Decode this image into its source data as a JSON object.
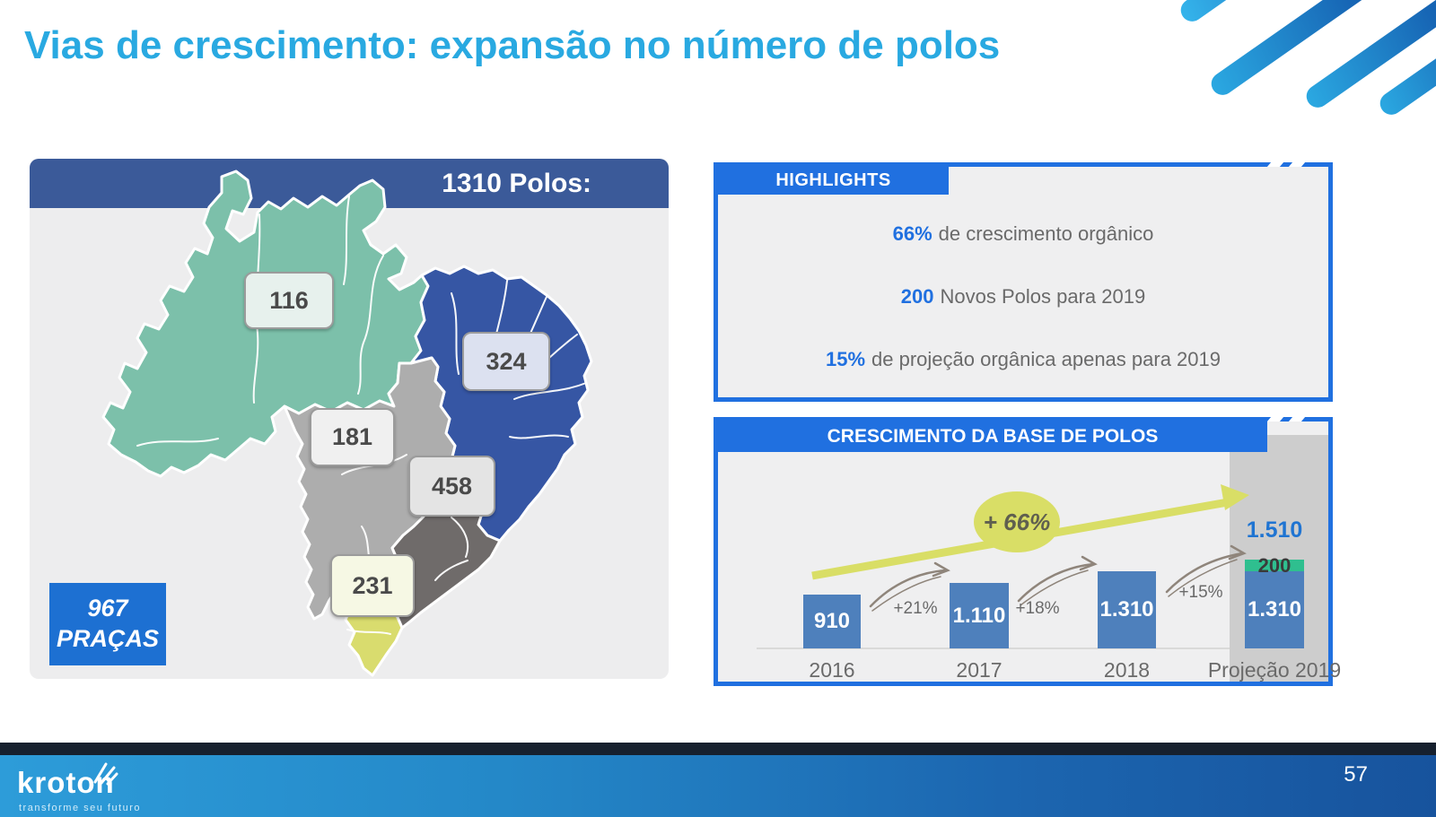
{
  "slide": {
    "title": "Vias de crescimento: expansão no número de polos",
    "page_number": "57"
  },
  "map_panel": {
    "header": "1310 Polos:",
    "pracas_value": "967",
    "pracas_label": "PRAÇAS",
    "regions": [
      {
        "name": "Norte",
        "value": "116",
        "color": "#7CC0AA",
        "label_bg": "#E7F1ED"
      },
      {
        "name": "Nordeste",
        "value": "324",
        "color": "#3656A4",
        "label_bg": "#DCE1F0"
      },
      {
        "name": "Centro-Oeste",
        "value": "181",
        "color": "#ADADAD",
        "label_bg": "#F0F0F0"
      },
      {
        "name": "Sudeste",
        "value": "458",
        "color": "#6F6B6A",
        "label_bg": "#E4E4E4"
      },
      {
        "name": "Sul",
        "value": "231",
        "color": "#D9DC6E",
        "label_bg": "#F6F8E4"
      }
    ]
  },
  "highlights_panel": {
    "header": "HIGHLIGHTS",
    "items": [
      {
        "value": "66%",
        "text": "de crescimento orgânico"
      },
      {
        "value": "200",
        "text": "Novos Polos para 2019"
      },
      {
        "value": "15%",
        "text": "de projeção orgânica apenas para 2019"
      }
    ]
  },
  "chart_panel": {
    "header": "CRESCIMENTO DA BASE DE POLOS"
  },
  "chart_data": {
    "type": "bar",
    "title": "CRESCIMENTO DA BASE DE POLOS",
    "categories": [
      "2016",
      "2017",
      "2018",
      "Projeção 2019"
    ],
    "series": [
      {
        "name": "Base de polos",
        "values": [
          910,
          1110,
          1310,
          1310
        ],
        "color": "#4E80BC"
      },
      {
        "name": "Novos polos",
        "values": [
          0,
          0,
          0,
          200
        ],
        "color": "#2FBF8F"
      }
    ],
    "bar_value_labels": [
      "910",
      "1.110",
      "1.310",
      "1.310"
    ],
    "segment_top_label": "200",
    "total_label": "1.510",
    "growth_labels": [
      "+21%",
      "+18%",
      "+15%"
    ],
    "trend_label": "+ 66%",
    "ylim": [
      0,
      1600
    ],
    "grid": false,
    "legend": false,
    "highlighted_category": "Projeção 2019"
  },
  "footer": {
    "logo": "kroton",
    "tagline": "transforme seu futuro",
    "page_number": "57"
  },
  "colors": {
    "title_blue": "#29A9E1",
    "accent_blue": "#2070E0",
    "map_header_navy": "#3B5A99",
    "bar_blue": "#4E80BC",
    "new_polos_green": "#2FBF8F",
    "trend_yellow": "#D9DE66",
    "panel_gray": "#EFEFF0",
    "projection_column_gray": "#CDCDCD",
    "footer_navy": "#16202E"
  }
}
